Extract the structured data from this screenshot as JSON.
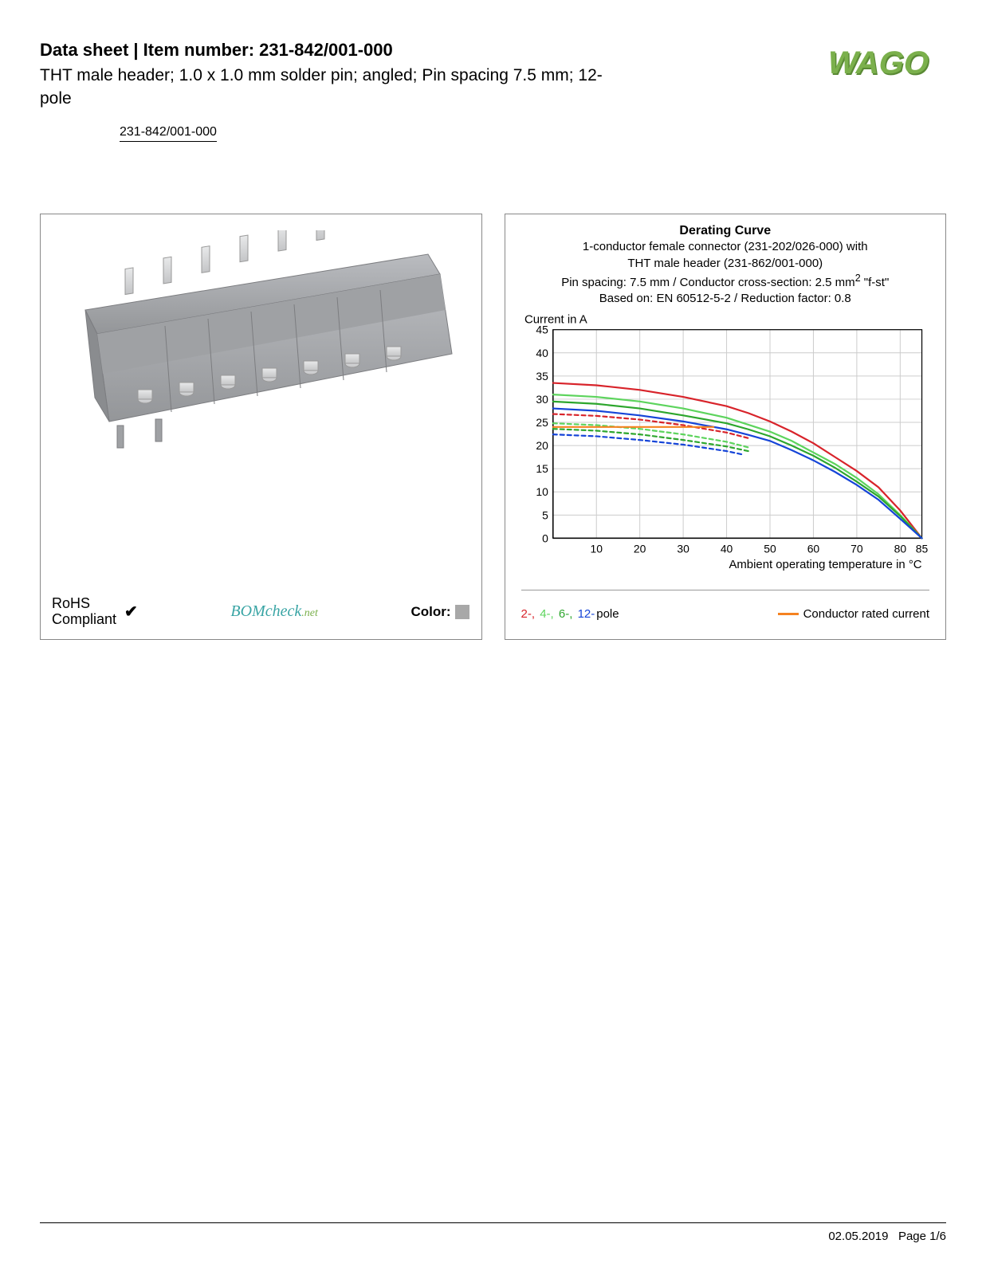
{
  "header": {
    "title_prefix": "Data sheet",
    "title_sep": " | ",
    "title_label": "Item number: ",
    "item_number": "231-842/001-000",
    "subtitle": "THT male header; 1.0 x 1.0 mm solder pin; angled; Pin spacing 7.5 mm; 12-pole",
    "link_text": "231-842/001-000",
    "logo_text": "WAGO",
    "logo_color": "#7bb04c",
    "logo_shadow": "#5a8a35"
  },
  "product_panel": {
    "connector_body_color": "#a8aaad",
    "connector_pin_color": "#d8d9da",
    "rohs_line1": "RoHS",
    "rohs_line2": "Compliant",
    "check_glyph": "✔",
    "bomcheck_main": "BOMcheck",
    "bomcheck_suffix": ".net",
    "color_label": "Color:",
    "color_swatch": "#a8a8a8"
  },
  "chart": {
    "title": "Derating Curve",
    "sub1": "1-conductor female connector (231-202/026-000) with",
    "sub2": "THT male header (231-862/001-000)",
    "sub3_a": "Pin spacing: 7.5 mm / Conductor cross-section: 2.5 mm",
    "sub3_sup": "2",
    "sub3_b": " \"f-st\"",
    "sub4": "Based on: EN 60512-5-2 / Reduction factor: 0.8",
    "y_label": "Current in A",
    "x_label": "Ambient operating temperature in °C",
    "xlim": [
      0,
      85
    ],
    "ylim": [
      0,
      45
    ],
    "x_ticks": [
      10,
      20,
      30,
      40,
      50,
      60,
      70,
      80,
      85
    ],
    "y_ticks": [
      0,
      5,
      10,
      15,
      20,
      25,
      30,
      35,
      40,
      45
    ],
    "grid_color": "#cccccc",
    "axis_color": "#000000",
    "background": "#ffffff",
    "tick_fontsize": 14,
    "label_fontsize": 15,
    "line_width": 2.2,
    "dash_pattern": "5,4",
    "series": [
      {
        "name": "2-pole-solid",
        "color": "#d8232a",
        "points": [
          [
            0,
            33.5
          ],
          [
            10,
            33
          ],
          [
            20,
            32
          ],
          [
            30,
            30.5
          ],
          [
            40,
            28.5
          ],
          [
            45,
            27
          ],
          [
            50,
            25.2
          ],
          [
            55,
            23
          ],
          [
            60,
            20.5
          ],
          [
            65,
            17.5
          ],
          [
            70,
            14.5
          ],
          [
            75,
            11
          ],
          [
            80,
            6
          ],
          [
            85,
            0
          ]
        ]
      },
      {
        "name": "2-pole-dash",
        "color": "#d8232a",
        "dashed": true,
        "points": [
          [
            0,
            26.8
          ],
          [
            10,
            26.4
          ],
          [
            20,
            25.6
          ],
          [
            30,
            24.4
          ],
          [
            40,
            22.8
          ],
          [
            45,
            21.6
          ]
        ]
      },
      {
        "name": "4-pole-solid",
        "color": "#5dd45d",
        "points": [
          [
            0,
            31
          ],
          [
            10,
            30.5
          ],
          [
            20,
            29.5
          ],
          [
            30,
            28
          ],
          [
            40,
            26
          ],
          [
            45,
            24.5
          ],
          [
            50,
            23
          ],
          [
            55,
            21
          ],
          [
            60,
            18.5
          ],
          [
            65,
            16
          ],
          [
            70,
            13
          ],
          [
            75,
            9.5
          ],
          [
            80,
            5
          ],
          [
            85,
            0
          ]
        ]
      },
      {
        "name": "4-pole-dash",
        "color": "#5dd45d",
        "dashed": true,
        "points": [
          [
            0,
            24.8
          ],
          [
            10,
            24.4
          ],
          [
            20,
            23.6
          ],
          [
            30,
            22.4
          ],
          [
            40,
            20.8
          ],
          [
            45,
            19.6
          ]
        ]
      },
      {
        "name": "6-pole-solid",
        "color": "#2da62d",
        "points": [
          [
            0,
            29.5
          ],
          [
            10,
            29
          ],
          [
            20,
            28
          ],
          [
            30,
            26.5
          ],
          [
            40,
            24.8
          ],
          [
            45,
            23.5
          ],
          [
            50,
            22
          ],
          [
            55,
            20
          ],
          [
            60,
            17.8
          ],
          [
            65,
            15.2
          ],
          [
            70,
            12.2
          ],
          [
            75,
            9
          ],
          [
            80,
            4.8
          ],
          [
            85,
            0
          ]
        ]
      },
      {
        "name": "6-pole-dash",
        "color": "#2da62d",
        "dashed": true,
        "points": [
          [
            0,
            23.6
          ],
          [
            10,
            23.2
          ],
          [
            20,
            22.4
          ],
          [
            30,
            21.2
          ],
          [
            40,
            19.8
          ],
          [
            45,
            18.8
          ]
        ]
      },
      {
        "name": "12-pole-solid",
        "color": "#1544d8",
        "points": [
          [
            0,
            28
          ],
          [
            10,
            27.5
          ],
          [
            20,
            26.5
          ],
          [
            30,
            25.2
          ],
          [
            40,
            23.5
          ],
          [
            45,
            22.3
          ],
          [
            50,
            21
          ],
          [
            55,
            19
          ],
          [
            60,
            16.8
          ],
          [
            65,
            14.3
          ],
          [
            70,
            11.5
          ],
          [
            75,
            8.3
          ],
          [
            80,
            4.2
          ],
          [
            85,
            0
          ]
        ]
      },
      {
        "name": "12-pole-dash",
        "color": "#1544d8",
        "dashed": true,
        "points": [
          [
            0,
            22.4
          ],
          [
            10,
            22
          ],
          [
            20,
            21.2
          ],
          [
            30,
            20.2
          ],
          [
            40,
            18.8
          ],
          [
            44,
            18
          ]
        ]
      },
      {
        "name": "conductor-rated",
        "color": "#f58220",
        "points": [
          [
            0,
            24
          ],
          [
            10,
            24
          ],
          [
            20,
            24
          ],
          [
            30,
            24
          ],
          [
            37,
            24
          ]
        ]
      }
    ],
    "legend": {
      "poles": [
        {
          "label": "2-",
          "color": "#d8232a"
        },
        {
          "label": "4-",
          "color": "#5dd45d"
        },
        {
          "label": "6-",
          "color": "#2da62d"
        },
        {
          "label": "12-",
          "color": "#1544d8"
        }
      ],
      "poles_suffix": "pole",
      "rated_label": "Conductor rated current",
      "rated_color": "#f58220"
    }
  },
  "footer": {
    "date": "02.05.2019",
    "page": "Page 1/6"
  }
}
